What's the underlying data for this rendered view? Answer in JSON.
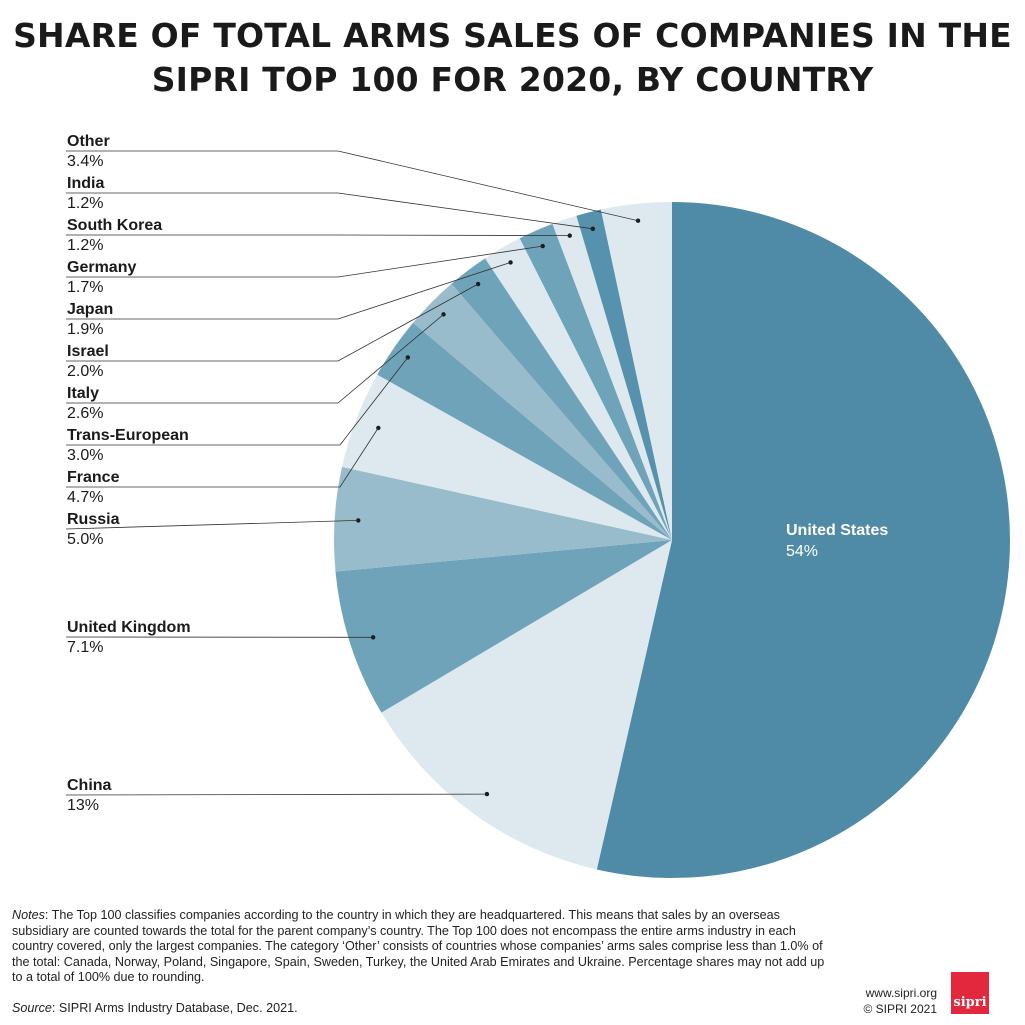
{
  "title": {
    "line1": "SHARE OF TOTAL ARMS SALES OF COMPANIES IN THE",
    "line2": "SIPRI TOP 100 FOR 2020, BY COUNTRY"
  },
  "colors": {
    "united_states": "#4f8ba6",
    "dark": "#5692ad",
    "medium": "#6fa3ba",
    "light": "#98bccc",
    "pale": "#dde9ee"
  },
  "chart_data": {
    "type": "pie",
    "title": "SHARE OF TOTAL ARMS SALES OF COMPANIES IN THE SIPRI TOP 100 FOR 2020, BY COUNTRY",
    "unit": "%",
    "slices": [
      {
        "label": "United States",
        "value": 54,
        "display": "54%"
      },
      {
        "label": "China",
        "value": 13,
        "display": "13%"
      },
      {
        "label": "United Kingdom",
        "value": 7.1,
        "display": "7.1%"
      },
      {
        "label": "Russia",
        "value": 5.0,
        "display": "5.0%"
      },
      {
        "label": "France",
        "value": 4.7,
        "display": "4.7%"
      },
      {
        "label": "Trans-European",
        "value": 3.0,
        "display": "3.0%"
      },
      {
        "label": "Italy",
        "value": 2.6,
        "display": "2.6%"
      },
      {
        "label": "Israel",
        "value": 2.0,
        "display": "2.0%"
      },
      {
        "label": "Japan",
        "value": 1.9,
        "display": "1.9%"
      },
      {
        "label": "Germany",
        "value": 1.7,
        "display": "1.7%"
      },
      {
        "label": "South Korea",
        "value": 1.2,
        "display": "1.2%"
      },
      {
        "label": "India",
        "value": 1.2,
        "display": "1.2%"
      },
      {
        "label": "Other",
        "value": 3.4,
        "display": "3.4%"
      }
    ],
    "start": "12 o'clock",
    "direction": "clockwise"
  },
  "notes": {
    "label": "Notes",
    "text": ": The Top 100 classifies companies according to the country in which they are headquartered. This means that sales by an overseas subsidiary are counted towards the total for the parent company’s country. The Top 100 does not encompass the entire arms industry in each country covered, only the largest companies. The category ‘Other’ consists of countries whose companies’ arms sales comprise less than 1.0% of the total: Canada, Norway, Poland, Singapore, Spain, Sweden, Turkey, the United Arab Emirates and Ukraine. Percentage shares may not add up to a total of 100% due to rounding."
  },
  "source": {
    "label": "Source",
    "text": ": SIPRI Arms Industry Database, Dec. 2021."
  },
  "footer": {
    "website": "www.sipri.org",
    "copyright": "© SIPRI 2021",
    "logo_text": "sipri"
  }
}
